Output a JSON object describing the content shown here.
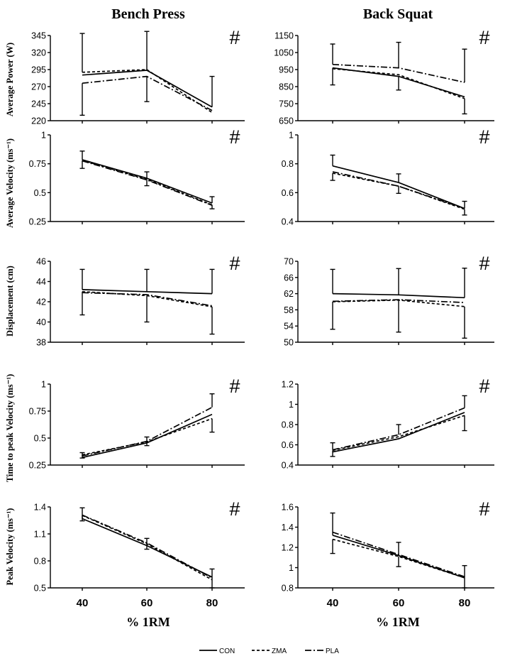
{
  "chart_data": {
    "type": "line",
    "columns": [
      "Bench Press",
      "Back Squat"
    ],
    "xlabel": "% 1RM",
    "x": [
      40,
      60,
      80
    ],
    "legend": [
      {
        "name": "CON",
        "dash": "solid"
      },
      {
        "name": "ZMA",
        "dash": "dashed"
      },
      {
        "name": "PLA",
        "dash": "dashdot"
      }
    ],
    "rows": [
      {
        "ylabel": "Average Power (W)",
        "panels": [
          {
            "exercise": "Bench Press",
            "significance": "#",
            "ylim": [
              220,
              345
            ],
            "yticks": [
              "220",
              "245",
              "270",
              "295",
              "320",
              "345"
            ],
            "series": [
              {
                "name": "CON",
                "values": [
                  287,
                  294,
                  240
                ],
                "err_up": [
                  0,
                  0,
                  45
                ],
                "err_down": [
                  0,
                  0,
                  0
                ]
              },
              {
                "name": "ZMA",
                "values": [
                  291,
                  295,
                  232
                ],
                "err_up": [
                  57,
                  56,
                  0
                ],
                "err_down": [
                  0,
                  0,
                  0
                ]
              },
              {
                "name": "PLA",
                "values": [
                  275,
                  285,
                  235
                ],
                "err_up": [
                  0,
                  0,
                  0
                ],
                "err_down": [
                  47,
                  37,
                  0
                ]
              }
            ]
          },
          {
            "exercise": "Back Squat",
            "significance": "#",
            "ylim": [
              650,
              1150
            ],
            "yticks": [
              "650",
              "750",
              "850",
              "950",
              "1050",
              "1150"
            ],
            "series": [
              {
                "name": "CON",
                "values": [
                  960,
                  910,
                  790
                ],
                "err_up": [
                  0,
                  0,
                  0
                ],
                "err_down": [
                  100,
                  80,
                  0
                ]
              },
              {
                "name": "ZMA",
                "values": [
                  955,
                  920,
                  780
                ],
                "err_up": [
                  0,
                  0,
                  0
                ],
                "err_down": [
                  0,
                  0,
                  90
                ]
              },
              {
                "name": "PLA",
                "values": [
                  980,
                  960,
                  875
                ],
                "err_up": [
                  120,
                  150,
                  195
                ],
                "err_down": [
                  0,
                  0,
                  0
                ]
              }
            ]
          }
        ]
      },
      {
        "ylabel": "Average Velocity (ms⁻¹)",
        "panels": [
          {
            "exercise": "Bench Press",
            "significance": "#",
            "ylim": [
              0.25,
              1
            ],
            "yticks": [
              "0.25",
              "0.5",
              "0.75",
              "1"
            ],
            "series": [
              {
                "name": "CON",
                "values": [
                  0.785,
                  0.625,
                  0.41
                ],
                "err_up": [
                  0.075,
                  0.055,
                  0.055
                ],
                "err_down": [
                  0,
                  0,
                  0
                ]
              },
              {
                "name": "ZMA",
                "values": [
                  0.78,
                  0.615,
                  0.395
                ],
                "err_up": [
                  0,
                  0,
                  0
                ],
                "err_down": [
                  0.07,
                  0.055,
                  0.035
                ]
              },
              {
                "name": "PLA",
                "values": [
                  0.775,
                  0.61,
                  0.39
                ],
                "err_up": [
                  0,
                  0,
                  0
                ],
                "err_down": [
                  0,
                  0,
                  0
                ]
              }
            ]
          },
          {
            "exercise": "Back Squat",
            "significance": "#",
            "ylim": [
              0.4,
              1
            ],
            "yticks": [
              "0.4",
              "0.6",
              "0.8",
              "1"
            ],
            "series": [
              {
                "name": "CON",
                "values": [
                  0.785,
                  0.67,
                  0.49
                ],
                "err_up": [
                  0.075,
                  0.06,
                  0.05
                ],
                "err_down": [
                  0,
                  0,
                  0
                ]
              },
              {
                "name": "ZMA",
                "values": [
                  0.735,
                  0.645,
                  0.485
                ],
                "err_up": [
                  0,
                  0,
                  0
                ],
                "err_down": [
                  0.05,
                  0.05,
                  0.04
                ]
              },
              {
                "name": "PLA",
                "values": [
                  0.745,
                  0.645,
                  0.49
                ],
                "err_up": [
                  0,
                  0,
                  0
                ],
                "err_down": [
                  0,
                  0,
                  0
                ]
              }
            ]
          }
        ]
      },
      {
        "ylabel": "Displacement (cm)",
        "panels": [
          {
            "exercise": "Bench Press",
            "significance": "#",
            "ylim": [
              38,
              46
            ],
            "yticks": [
              "38",
              "40",
              "42",
              "44",
              "46"
            ],
            "series": [
              {
                "name": "CON",
                "values": [
                  43.2,
                  43.0,
                  42.8
                ],
                "err_up": [
                  2.0,
                  2.2,
                  2.4
                ],
                "err_down": [
                  0,
                  0,
                  0
                ]
              },
              {
                "name": "ZMA",
                "values": [
                  43.0,
                  42.6,
                  41.5
                ],
                "err_up": [
                  0,
                  0,
                  0
                ],
                "err_down": [
                  2.3,
                  2.6,
                  2.7
                ]
              },
              {
                "name": "PLA",
                "values": [
                  42.9,
                  42.7,
                  41.6
                ],
                "err_up": [
                  0,
                  0,
                  0
                ],
                "err_down": [
                  0,
                  0,
                  0
                ]
              }
            ]
          },
          {
            "exercise": "Back Squat",
            "significance": "#",
            "ylim": [
              50,
              70
            ],
            "yticks": [
              "50",
              "54",
              "58",
              "62",
              "66",
              "70"
            ],
            "series": [
              {
                "name": "CON",
                "values": [
                  62.0,
                  61.7,
                  61.0
                ],
                "err_up": [
                  6.0,
                  6.5,
                  7.3
                ],
                "err_down": [
                  0,
                  0,
                  0
                ]
              },
              {
                "name": "ZMA",
                "values": [
                  60.0,
                  60.4,
                  58.8
                ],
                "err_up": [
                  0,
                  0,
                  0
                ],
                "err_down": [
                  6.8,
                  7.9,
                  7.8
                ]
              },
              {
                "name": "PLA",
                "values": [
                  60.1,
                  60.5,
                  59.8
                ],
                "err_up": [
                  0,
                  0,
                  0
                ],
                "err_down": [
                  0,
                  0,
                  0
                ]
              }
            ]
          }
        ]
      },
      {
        "ylabel": "Time to peak Velocity (ms⁻¹)",
        "panels": [
          {
            "exercise": "Bench Press",
            "significance": "#",
            "ylim": [
              0.25,
              1
            ],
            "yticks": [
              "0.25",
              "0.5",
              "0.75",
              "1"
            ],
            "series": [
              {
                "name": "CON",
                "values": [
                  0.32,
                  0.455,
                  0.72
                ],
                "err_up": [
                  0,
                  0,
                  0
                ],
                "err_down": [
                  0,
                  0,
                  0
                ]
              },
              {
                "name": "ZMA",
                "values": [
                  0.345,
                  0.465,
                  0.68
                ],
                "err_up": [
                  0,
                  0,
                  0
                ],
                "err_down": [
                  0.03,
                  0.035,
                  0.125
                ]
              },
              {
                "name": "PLA",
                "values": [
                  0.335,
                  0.47,
                  0.785
                ],
                "err_up": [
                  0.03,
                  0.04,
                  0.125
                ],
                "err_down": [
                  0,
                  0,
                  0
                ]
              }
            ]
          },
          {
            "exercise": "Back Squat",
            "significance": "#",
            "ylim": [
              0.4,
              1.2
            ],
            "yticks": [
              "0.4",
              "0.6",
              "0.8",
              "1",
              "1.2"
            ],
            "series": [
              {
                "name": "CON",
                "values": [
                  0.53,
                  0.66,
                  0.92
                ],
                "err_up": [
                  0,
                  0,
                  0
                ],
                "err_down": [
                  0,
                  0,
                  0
                ]
              },
              {
                "name": "ZMA",
                "values": [
                  0.545,
                  0.68,
                  0.89
                ],
                "err_up": [
                  0,
                  0,
                  0
                ],
                "err_down": [
                  0.06,
                  0,
                  0.15
                ]
              },
              {
                "name": "PLA",
                "values": [
                  0.55,
                  0.7,
                  0.965
                ],
                "err_up": [
                  0.07,
                  0.1,
                  0.12
                ],
                "err_down": [
                  0,
                  0,
                  0
                ]
              }
            ]
          }
        ]
      },
      {
        "ylabel": "Peak Velocity (ms⁻¹)",
        "panels": [
          {
            "exercise": "Bench Press",
            "significance": "#",
            "ylim": [
              0.5,
              1.4
            ],
            "yticks": [
              "0.5",
              "0.8",
              "1.1",
              "1.4"
            ],
            "series": [
              {
                "name": "CON",
                "values": [
                  1.27,
                  0.97,
                  0.62
                ],
                "err_up": [
                  0.12,
                  0,
                  0
                ],
                "err_down": [
                  0,
                  0,
                  0
                ]
              },
              {
                "name": "ZMA",
                "values": [
                  1.305,
                  0.99,
                  0.59
                ],
                "err_up": [
                  0,
                  0.06,
                  0.12
                ],
                "err_down": [
                  0.06,
                  0.06,
                  0.09
                ]
              },
              {
                "name": "PLA",
                "values": [
                  1.31,
                  1.0,
                  0.61
                ],
                "err_up": [
                  0,
                  0,
                  0
                ],
                "err_down": [
                  0,
                  0,
                  0
                ]
              }
            ]
          },
          {
            "exercise": "Back Squat",
            "significance": "#",
            "ylim": [
              0.8,
              1.6
            ],
            "yticks": [
              "0.8",
              "1",
              "1.2",
              "1.4",
              "1.6"
            ],
            "series": [
              {
                "name": "CON",
                "values": [
                  1.32,
                  1.12,
                  0.9
                ],
                "err_up": [
                  0.22,
                  0.13,
                  0.12
                ],
                "err_down": [
                  0,
                  0,
                  0
                ]
              },
              {
                "name": "ZMA",
                "values": [
                  1.28,
                  1.11,
                  0.9
                ],
                "err_up": [
                  0,
                  0,
                  0
                ],
                "err_down": [
                  0.14,
                  0.1,
                  0.1
                ]
              },
              {
                "name": "PLA",
                "values": [
                  1.35,
                  1.13,
                  0.91
                ],
                "err_up": [
                  0,
                  0,
                  0
                ],
                "err_down": [
                  0,
                  0,
                  0
                ]
              }
            ]
          }
        ]
      }
    ]
  }
}
